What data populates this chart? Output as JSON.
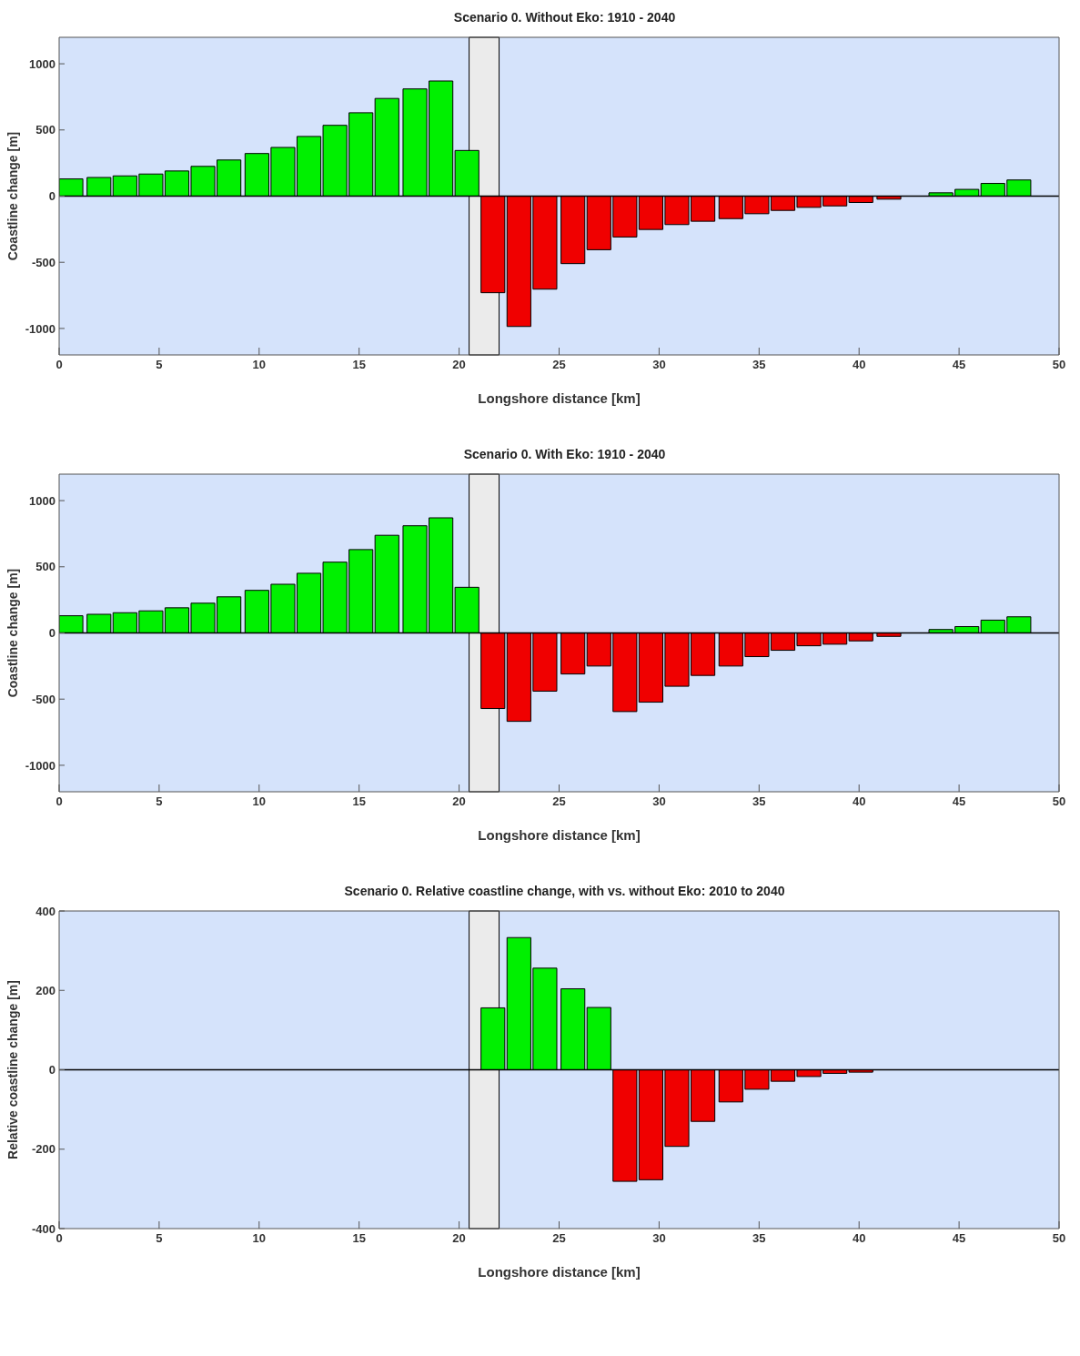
{
  "chart_data": [
    {
      "type": "bar",
      "title": "Scenario 0. Without Eko: 1910 - 2040",
      "xlabel": "Longshore distance [km]",
      "ylabel": "Coastline change [m]",
      "x": [
        0.6,
        2.0,
        3.3,
        4.6,
        5.9,
        7.2,
        8.5,
        9.9,
        11.2,
        12.5,
        13.8,
        15.1,
        16.4,
        17.8,
        19.1,
        20.4,
        21.7,
        23.0,
        24.3,
        25.7,
        27.0,
        28.3,
        29.6,
        30.9,
        32.2,
        33.6,
        34.9,
        36.2,
        37.5,
        38.8,
        40.1,
        41.5,
        42.8,
        44.1,
        45.4,
        46.7,
        48.0
      ],
      "values": [
        130,
        141,
        153,
        167,
        190,
        225,
        273,
        322,
        368,
        451,
        535,
        630,
        738,
        810,
        870,
        345,
        -730,
        -985,
        -703,
        -510,
        -405,
        -309,
        -252,
        -215,
        -190,
        -170,
        -133,
        -108,
        -85,
        -74,
        -48,
        -23,
        0,
        25,
        51,
        96,
        122
      ],
      "colors": [
        "#00f000",
        "#00f000",
        "#00f000",
        "#00f000",
        "#00f000",
        "#00f000",
        "#00f000",
        "#00f000",
        "#00f000",
        "#00f000",
        "#00f000",
        "#00f000",
        "#00f000",
        "#00f000",
        "#00f000",
        "#00f000",
        "#f00000",
        "#f00000",
        "#f00000",
        "#f00000",
        "#f00000",
        "#f00000",
        "#f00000",
        "#f00000",
        "#f00000",
        "#f00000",
        "#f00000",
        "#f00000",
        "#f00000",
        "#f00000",
        "#f00000",
        "#f00000",
        "#f00000",
        "#00f000",
        "#00f000",
        "#00f000",
        "#00f000"
      ],
      "xlim": [
        0,
        50
      ],
      "xticks": [
        0,
        5,
        10,
        15,
        20,
        25,
        30,
        35,
        40,
        45,
        50
      ],
      "ylim": [
        -1200,
        1200
      ],
      "yticks": [
        -1000,
        -500,
        0,
        500,
        1000
      ],
      "bands": [
        {
          "axis": "x",
          "from": 20.5,
          "to": 22.0,
          "color": "#ebebeb"
        }
      ],
      "ref_lines": [
        {
          "axis": "y",
          "value": 0,
          "color": "#000000"
        }
      ]
    },
    {
      "type": "bar",
      "title": "Scenario 0. With Eko: 1910 - 2040",
      "xlabel": "Longshore distance [km]",
      "ylabel": "Coastline change [m]",
      "x": [
        0.6,
        2.0,
        3.3,
        4.6,
        5.9,
        7.2,
        8.5,
        9.9,
        11.2,
        12.5,
        13.8,
        15.1,
        16.4,
        17.8,
        19.1,
        20.4,
        21.7,
        23.0,
        24.3,
        25.7,
        27.0,
        28.3,
        29.6,
        30.9,
        32.2,
        33.6,
        34.9,
        36.2,
        37.5,
        38.8,
        40.1,
        41.5,
        42.8,
        44.1,
        45.4,
        46.7,
        48.0
      ],
      "values": [
        130,
        141,
        153,
        167,
        190,
        225,
        273,
        322,
        368,
        451,
        535,
        630,
        738,
        810,
        870,
        345,
        -571,
        -668,
        -440,
        -310,
        -250,
        -594,
        -523,
        -403,
        -321,
        -250,
        -179,
        -131,
        -97,
        -85,
        -60,
        -26,
        0,
        26,
        48,
        97,
        122
      ],
      "colors": [
        "#00f000",
        "#00f000",
        "#00f000",
        "#00f000",
        "#00f000",
        "#00f000",
        "#00f000",
        "#00f000",
        "#00f000",
        "#00f000",
        "#00f000",
        "#00f000",
        "#00f000",
        "#00f000",
        "#00f000",
        "#00f000",
        "#f00000",
        "#f00000",
        "#f00000",
        "#f00000",
        "#f00000",
        "#f00000",
        "#f00000",
        "#f00000",
        "#f00000",
        "#f00000",
        "#f00000",
        "#f00000",
        "#f00000",
        "#f00000",
        "#f00000",
        "#f00000",
        "#f00000",
        "#00f000",
        "#00f000",
        "#00f000",
        "#00f000"
      ],
      "xlim": [
        0,
        50
      ],
      "xticks": [
        0,
        5,
        10,
        15,
        20,
        25,
        30,
        35,
        40,
        45,
        50
      ],
      "ylim": [
        -1200,
        1200
      ],
      "yticks": [
        -1000,
        -500,
        0,
        500,
        1000
      ],
      "bands": [
        {
          "axis": "x",
          "from": 20.5,
          "to": 22.0,
          "color": "#ebebeb"
        }
      ],
      "ref_lines": [
        {
          "axis": "y",
          "value": 0,
          "color": "#000000"
        }
      ]
    },
    {
      "type": "bar",
      "title": "Scenario 0. Relative coastline change, with vs. without Eko: 2010 to 2040",
      "xlabel": "Longshore distance [km]",
      "ylabel": "Relative coastline change [m]",
      "x": [
        0.6,
        2.0,
        3.3,
        4.6,
        5.9,
        7.2,
        8.5,
        9.9,
        11.2,
        12.5,
        13.8,
        15.1,
        16.4,
        17.8,
        19.1,
        20.4,
        21.7,
        23.0,
        24.3,
        25.7,
        27.0,
        28.3,
        29.6,
        30.9,
        32.2,
        33.6,
        34.9,
        36.2,
        37.5,
        38.8,
        40.1,
        41.5,
        42.8,
        44.1,
        45.4,
        46.7,
        48.0
      ],
      "values": [
        0,
        0,
        0,
        0,
        0,
        0,
        0,
        0,
        0,
        0,
        0,
        0,
        0,
        0,
        0,
        0,
        156,
        333,
        256,
        204,
        157,
        -281,
        -277,
        -193,
        -130,
        -81,
        -49,
        -29,
        -17,
        -9,
        -6,
        0,
        0,
        0,
        0,
        0,
        0
      ],
      "colors": [
        "#00f000",
        "#00f000",
        "#00f000",
        "#00f000",
        "#00f000",
        "#00f000",
        "#00f000",
        "#00f000",
        "#00f000",
        "#00f000",
        "#00f000",
        "#00f000",
        "#00f000",
        "#00f000",
        "#00f000",
        "#00f000",
        "#00f000",
        "#00f000",
        "#00f000",
        "#00f000",
        "#00f000",
        "#f00000",
        "#f00000",
        "#f00000",
        "#f00000",
        "#f00000",
        "#f00000",
        "#f00000",
        "#f00000",
        "#f00000",
        "#f00000",
        "#f00000",
        "#f00000",
        "#f00000",
        "#f00000",
        "#f00000",
        "#f00000"
      ],
      "xlim": [
        0,
        50
      ],
      "xticks": [
        0,
        5,
        10,
        15,
        20,
        25,
        30,
        35,
        40,
        45,
        50
      ],
      "ylim": [
        -400,
        400
      ],
      "yticks": [
        -400,
        -200,
        0,
        200,
        400
      ],
      "bands": [
        {
          "axis": "x",
          "from": 20.5,
          "to": 22.0,
          "color": "#ebebeb"
        }
      ],
      "ref_lines": [
        {
          "axis": "y",
          "value": 0,
          "color": "#000000"
        }
      ]
    }
  ]
}
